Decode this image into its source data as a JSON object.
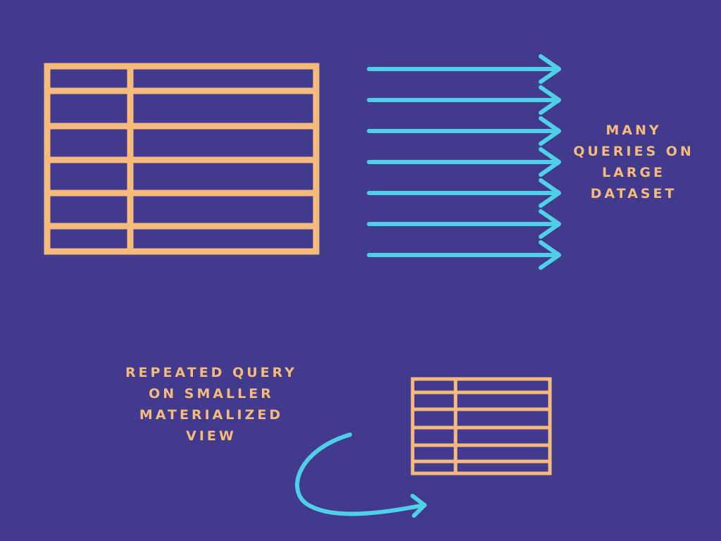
{
  "colors": {
    "background": "#413a8d",
    "table": "#f6bb7c",
    "arrow": "#4fd0e6",
    "text": "#f6bb7c"
  },
  "large_table": {
    "rows": 6,
    "columns": 2
  },
  "small_table": {
    "rows": 6,
    "columns": 2
  },
  "query_arrows": {
    "count": 7
  },
  "caption_large_dataset": {
    "lines": [
      "MANY",
      "QUERIES ON",
      "LARGE",
      "DATASET"
    ]
  },
  "caption_materialized_view": {
    "lines": [
      "REPEATED QUERY",
      "ON SMALLER",
      "MATERIALIZED",
      "VIEW"
    ]
  },
  "icons": [
    "large-table-icon",
    "query-arrows-icon",
    "small-table-icon",
    "loop-arrow-icon"
  ]
}
